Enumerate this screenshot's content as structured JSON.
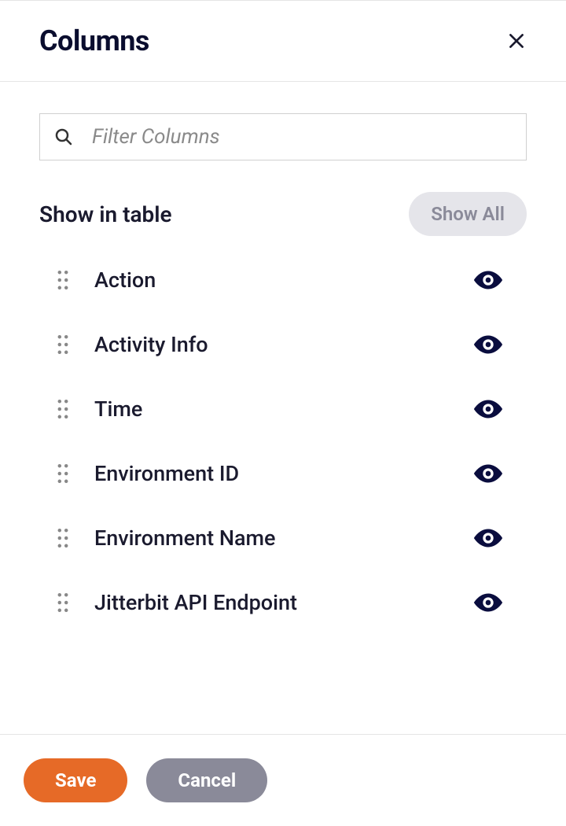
{
  "header": {
    "title": "Columns"
  },
  "search": {
    "placeholder": "Filter Columns"
  },
  "section": {
    "title": "Show in table",
    "show_all_label": "Show All"
  },
  "columns": [
    {
      "label": "Action"
    },
    {
      "label": "Activity Info"
    },
    {
      "label": "Time"
    },
    {
      "label": "Environment ID"
    },
    {
      "label": "Environment Name"
    },
    {
      "label": "Jitterbit API Endpoint"
    }
  ],
  "buttons": {
    "save": "Save",
    "cancel": "Cancel"
  },
  "colors": {
    "primary": "#e66a27",
    "secondary": "#8a8a99",
    "text_dark": "#0a0d2e",
    "border": "#e5e5e5"
  }
}
